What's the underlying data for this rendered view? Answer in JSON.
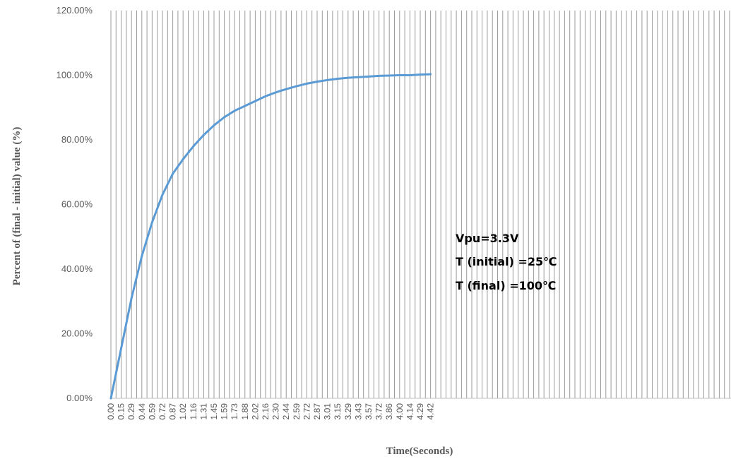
{
  "chart_data": {
    "type": "line",
    "xlabel": "Time(Seconds)",
    "ylabel": "Percent of (final - initial) value (%)",
    "ylim": [
      0,
      1.2
    ],
    "y_ticks": [
      "0.00%",
      "20.00%",
      "40.00%",
      "60.00%",
      "80.00%",
      "100.00%",
      "120.00%"
    ],
    "x_ticks": [
      "0.00",
      "0.15",
      "0.29",
      "0.44",
      "0.59",
      "0.72",
      "0.87",
      "1.02",
      "1.16",
      "1.31",
      "1.45",
      "1.59",
      "1.73",
      "1.88",
      "2.02",
      "2.16",
      "2.30",
      "2.44",
      "2.59",
      "2.72",
      "2.87",
      "3.01",
      "3.15",
      "3.29",
      "3.43",
      "3.57",
      "3.72",
      "3.86",
      "4.00",
      "4.14",
      "4.29",
      "4.42"
    ],
    "grid": true,
    "series": [
      {
        "color": "#5b9bd5",
        "x": [
          0.0,
          0.15,
          0.29,
          0.44,
          0.59,
          0.72,
          0.87,
          1.02,
          1.16,
          1.31,
          1.45,
          1.59,
          1.73,
          1.88,
          2.02,
          2.16,
          2.3,
          2.44,
          2.59,
          2.72,
          2.87,
          3.01,
          3.15,
          3.29,
          3.43,
          3.57,
          3.72,
          3.86,
          4.0,
          4.14,
          4.29,
          4.42
        ],
        "values": [
          0.0,
          0.155,
          0.31,
          0.44,
          0.545,
          0.63,
          0.695,
          0.74,
          0.78,
          0.815,
          0.845,
          0.87,
          0.89,
          0.905,
          0.92,
          0.935,
          0.947,
          0.957,
          0.966,
          0.974,
          0.98,
          0.985,
          0.989,
          0.992,
          0.994,
          0.996,
          0.998,
          0.999,
          1.0,
          1.0,
          1.002,
          1.003
        ]
      }
    ],
    "annotations": [
      "Vpu=3.3V",
      "T (initial) =25℃",
      "T (final) =100℃"
    ]
  }
}
